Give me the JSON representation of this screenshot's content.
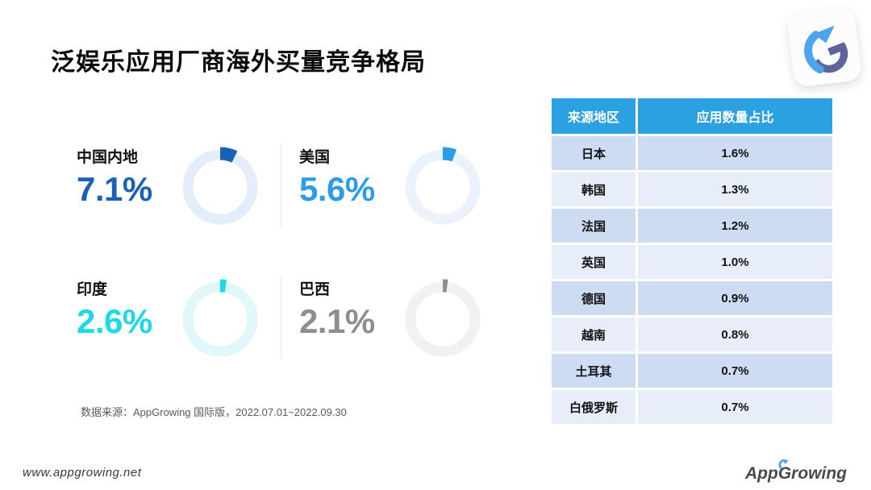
{
  "page": {
    "title": "泛娱乐应用厂商海外买量竞争格局",
    "source_note": "数据来源：AppGrowing 国际版，2022.07.01~2022.09.30",
    "footer_url": "www.appgrowing.net",
    "brand_app": "App",
    "brand_growing": "Growing"
  },
  "colors": {
    "table_header_bg": "#2BA1E2",
    "table_row_odd": "#CDDCF3",
    "table_row_even": "#E8EEF9",
    "divider": "#E7E7E7",
    "brand_blue": "#4FA3EC",
    "brand_navy": "#5E6399"
  },
  "chart_data": [
    {
      "type": "pie",
      "title": "泛娱乐应用厂商海外买量竞争格局",
      "unit": "%",
      "note": "four single-value donut gauges, wedge starts at 12 o'clock clockwise, wedge angle = value% of 360",
      "series": [
        {
          "name": "中国内地",
          "value": 7.1,
          "display": "7.1%",
          "color": "#1A61B8",
          "track": "#E4EEFA"
        },
        {
          "name": "美国",
          "value": 5.6,
          "display": "5.6%",
          "color": "#2D9CE8",
          "track": "#EAF3FC"
        },
        {
          "name": "印度",
          "value": 2.6,
          "display": "2.6%",
          "color": "#1BD9E6",
          "track": "#E1F8FA"
        },
        {
          "name": "巴西",
          "value": 2.1,
          "display": "2.1%",
          "color": "#8E8E8E",
          "track": "#F1F1F1"
        }
      ]
    },
    {
      "type": "table",
      "columns": [
        "来源地区",
        "应用数量占比"
      ],
      "rows": [
        {
          "region": "日本",
          "share": "1.6%"
        },
        {
          "region": "韩国",
          "share": "1.3%"
        },
        {
          "region": "法国",
          "share": "1.2%"
        },
        {
          "region": "英国",
          "share": "1.0%"
        },
        {
          "region": "德国",
          "share": "0.9%"
        },
        {
          "region": "越南",
          "share": "0.8%"
        },
        {
          "region": "土耳其",
          "share": "0.7%"
        },
        {
          "region": "白俄罗斯",
          "share": "0.7%"
        }
      ]
    }
  ]
}
